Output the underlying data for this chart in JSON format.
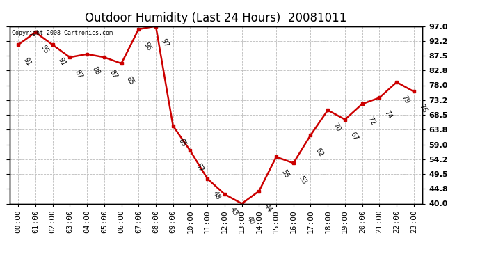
{
  "title": "Outdoor Humidity (Last 24 Hours)  20081011",
  "copyright": "Copyright 2008 Cartronics.com",
  "hours": [
    "00:00",
    "01:00",
    "02:00",
    "03:00",
    "04:00",
    "05:00",
    "06:00",
    "07:00",
    "08:00",
    "09:00",
    "10:00",
    "11:00",
    "12:00",
    "13:00",
    "14:00",
    "15:00",
    "16:00",
    "17:00",
    "18:00",
    "19:00",
    "20:00",
    "21:00",
    "22:00",
    "23:00"
  ],
  "values": [
    91,
    95,
    91,
    87,
    88,
    87,
    85,
    96,
    97,
    65,
    57,
    48,
    43,
    40,
    44,
    55,
    53,
    62,
    70,
    67,
    72,
    74,
    79,
    76
  ],
  "ylim": [
    40.0,
    97.0
  ],
  "yticks": [
    40.0,
    44.8,
    49.5,
    54.2,
    59.0,
    63.8,
    68.5,
    73.2,
    78.0,
    82.8,
    87.5,
    92.2,
    97.0
  ],
  "line_color": "#cc0000",
  "marker_color": "#cc0000",
  "bg_color": "#ffffff",
  "grid_color": "#bbbbbb",
  "title_fontsize": 12,
  "tick_fontsize": 8,
  "annot_fontsize": 7,
  "fig_width": 6.9,
  "fig_height": 3.75,
  "fig_dpi": 100
}
